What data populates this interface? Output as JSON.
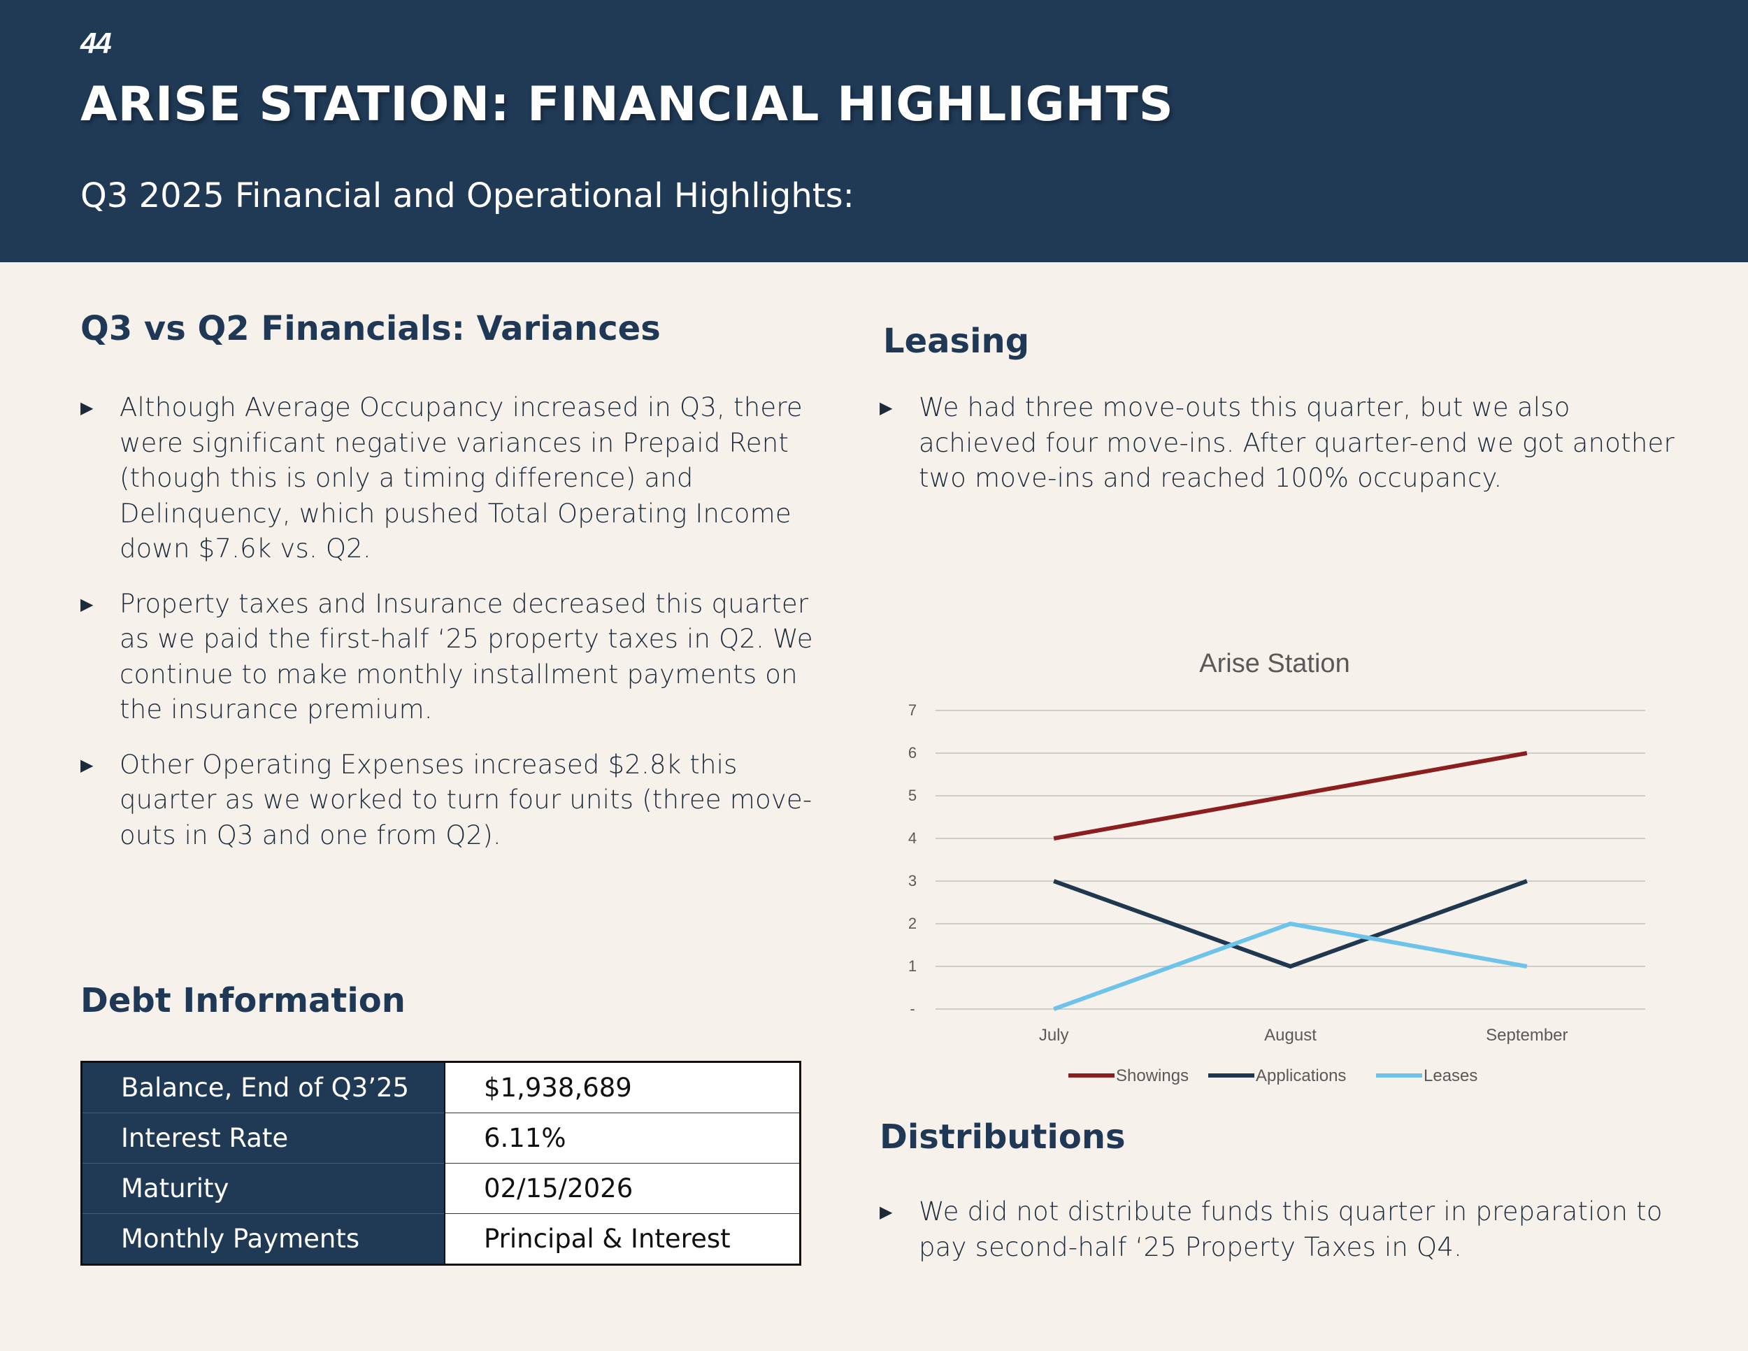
{
  "header": {
    "page_number": "44",
    "title": "ARISE STATION: FINANCIAL HIGHLIGHTS",
    "subtitle": "Q3 2025 Financial and Operational Highlights:"
  },
  "variances": {
    "heading": "Q3 vs Q2 Financials: Variances",
    "bullets": [
      "Although Average Occupancy increased in Q3, there were significant negative variances in Prepaid Rent (though this is only a timing difference) and Delinquency, which pushed Total Operating Income down $7.6k vs. Q2.",
      "Property taxes and Insurance decreased this quarter as we paid the first-half ‘25 property taxes in Q2. We continue to make monthly installment payments on the insurance premium.",
      "Other Operating Expenses increased $2.8k this quarter as we worked to turn four units (three move-outs in Q3 and one from Q2)."
    ]
  },
  "debt": {
    "heading": "Debt Information",
    "rows": [
      {
        "label": "Balance, End of Q3’25",
        "value": "$1,938,689"
      },
      {
        "label": "Interest Rate",
        "value": "6.11%"
      },
      {
        "label": "Maturity",
        "value": "02/15/2026"
      },
      {
        "label": "Monthly Payments",
        "value": "Principal & Interest"
      }
    ]
  },
  "leasing": {
    "heading": "Leasing",
    "bullets": [
      "We had three move-outs this quarter, but we also achieved four move-ins. After quarter-end we got another two move-ins and reached 100% occupancy."
    ]
  },
  "distributions": {
    "heading": "Distributions",
    "bullets": [
      "We did not distribute funds this quarter in preparation to pay second-half ‘25 Property Taxes in Q4."
    ]
  },
  "bullet_marker": "▶",
  "colors": {
    "navy": "#203a56",
    "background": "#f6f2eb",
    "showings": "#8b1e1e",
    "applications": "#203750",
    "leases": "#6ec3ea"
  },
  "chart_data": {
    "type": "line",
    "title": "Arise Station",
    "categories": [
      "July",
      "August",
      "September"
    ],
    "series": [
      {
        "name": "Showings",
        "values": [
          4,
          5,
          6
        ],
        "color": "#8b1e1e"
      },
      {
        "name": "Applications",
        "values": [
          3,
          1,
          3
        ],
        "color": "#203750"
      },
      {
        "name": "Leases",
        "values": [
          0,
          2,
          1
        ],
        "color": "#6ec3ea"
      }
    ],
    "yticks": [
      "-",
      "1",
      "2",
      "3",
      "4",
      "5",
      "6",
      "7"
    ],
    "ylim": [
      0,
      7
    ],
    "grid": true,
    "legend": "bottom",
    "xlabel": "",
    "ylabel": ""
  }
}
